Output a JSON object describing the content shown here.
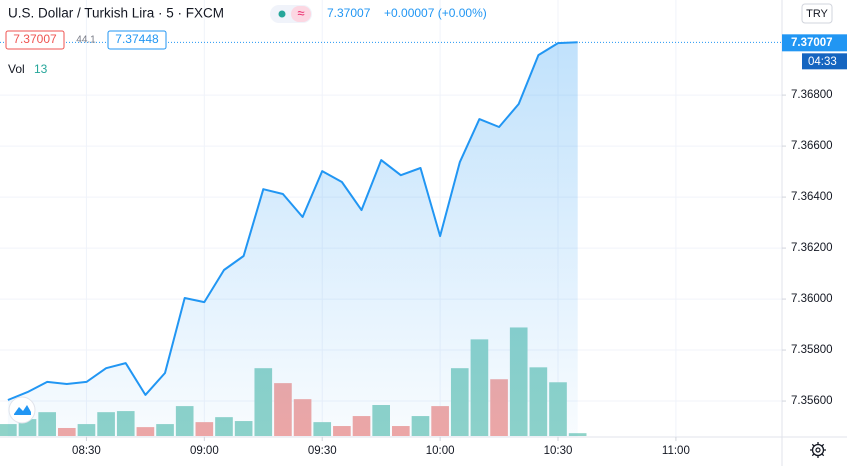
{
  "chart_data": {
    "type": "area",
    "title": "U.S. Dollar / Turkish Lira · 5 · FXCM",
    "price": "7.37007",
    "change": "+0.00007 (+0.00%)",
    "bid": "7.37007",
    "spread": "44.1",
    "ask": "7.37448",
    "currency": "TRY",
    "countdown": "04:33",
    "volume_label": "Vol",
    "x": [
      "08:10",
      "08:15",
      "08:20",
      "08:25",
      "08:30",
      "08:35",
      "08:40",
      "08:45",
      "08:50",
      "08:55",
      "09:00",
      "09:05",
      "09:10",
      "09:15",
      "09:20",
      "09:25",
      "09:30",
      "09:35",
      "09:40",
      "09:45",
      "09:50",
      "09:55",
      "10:00",
      "10:05",
      "10:10",
      "10:15",
      "10:20",
      "10:25",
      "10:30",
      "10:35"
    ],
    "series": [
      {
        "color": "#2196f3",
        "values": [
          7.35604,
          7.35635,
          7.35675,
          7.35667,
          7.35675,
          7.35729,
          7.35749,
          7.35624,
          7.3571,
          7.36004,
          7.35988,
          7.36114,
          7.36169,
          7.36431,
          7.36412,
          7.36322,
          7.36502,
          7.36459,
          7.36349,
          7.36545,
          7.36486,
          7.36514,
          7.36247,
          7.36537,
          7.36706,
          7.36675,
          7.36765,
          7.36957,
          7.37004,
          7.37007
        ]
      }
    ],
    "volume": {
      "values": [
        55,
        78,
        110,
        37,
        55,
        110,
        115,
        41,
        55,
        138,
        64,
        87,
        69,
        313,
        244,
        170,
        64,
        46,
        92,
        143,
        46,
        92,
        138,
        313,
        446,
        262,
        501,
        317,
        248,
        13
      ],
      "colors": [
        "#8fd3c8",
        "#8fd3c8",
        "#8fd3c8",
        "#f2a7a4",
        "#8fd3c8",
        "#8fd3c8",
        "#8fd3c8",
        "#f2a7a4",
        "#8fd3c8",
        "#8fd3c8",
        "#f2a7a4",
        "#8fd3c8",
        "#8fd3c8",
        "#8fd3c8",
        "#f2a7a4",
        "#f2a7a4",
        "#8fd3c8",
        "#f2a7a4",
        "#f2a7a4",
        "#8fd3c8",
        "#f2a7a4",
        "#8fd3c8",
        "#f2a7a4",
        "#8fd3c8",
        "#8fd3c8",
        "#f2a7a4",
        "#8fd3c8",
        "#8fd3c8",
        "#8fd3c8",
        "#8fd3c8"
      ],
      "ylim": [
        0,
        600
      ]
    },
    "xlim": [
      "08:08",
      "11:27"
    ],
    "xticks": [
      "08:30",
      "09:00",
      "09:30",
      "10:00",
      "10:30",
      "11:00"
    ],
    "ylim": [
      7.35459,
      7.37173
    ],
    "yticks": [
      {
        "value": 7.356,
        "label": "7.35600"
      },
      {
        "value": 7.358,
        "label": "7.35800"
      },
      {
        "value": 7.36,
        "label": "7.36000"
      },
      {
        "value": 7.362,
        "label": "7.36200"
      },
      {
        "value": 7.364,
        "label": "7.36400"
      },
      {
        "value": 7.366,
        "label": "7.36600"
      },
      {
        "value": 7.368,
        "label": "7.36800"
      }
    ],
    "grid": true
  }
}
